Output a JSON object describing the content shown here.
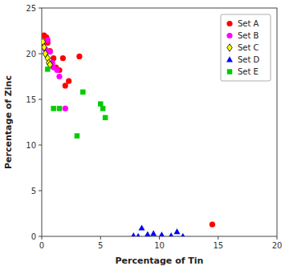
{
  "chart_data": {
    "type": "scatter",
    "xlabel": "Percentage of Tin",
    "ylabel": "Percentage of Zinc",
    "xlim": [
      0,
      20
    ],
    "ylim": [
      0,
      25
    ],
    "xticks": [
      0,
      5,
      10,
      15,
      20
    ],
    "yticks": [
      0,
      5,
      10,
      15,
      20,
      25
    ],
    "grid": false,
    "legend": "upper right",
    "series": [
      {
        "name": "Set A",
        "color": "#ff0000",
        "marker": "circle",
        "x": [
          0.2,
          0.4,
          0.5,
          0.7,
          1.0,
          1.2,
          1.5,
          1.8,
          2.0,
          2.3,
          3.2,
          14.5
        ],
        "values": [
          22.0,
          21.8,
          21.2,
          20.3,
          19.5,
          18.5,
          18.2,
          19.5,
          16.5,
          17.0,
          19.7,
          1.3
        ]
      },
      {
        "name": "Set B",
        "color": "#ff00ff",
        "marker": "circle",
        "x": [
          0.1,
          0.3,
          0.5,
          0.7,
          0.9,
          1.0,
          1.3,
          1.5,
          2.0
        ],
        "values": [
          21.2,
          20.5,
          21.5,
          20.2,
          19.0,
          18.5,
          18.2,
          17.5,
          14.0
        ]
      },
      {
        "name": "Set C",
        "color": "#ffff00",
        "marker": "diamond",
        "x": [
          0.1,
          0.2,
          0.3,
          0.5,
          0.6,
          0.7
        ],
        "values": [
          21.3,
          20.7,
          20.0,
          19.5,
          19.0,
          18.8
        ]
      },
      {
        "name": "Set D",
        "color": "#0000ff",
        "marker": "triangle",
        "x": [
          7.8,
          8.2,
          8.5,
          9.0,
          9.5,
          10.2,
          11.0,
          11.5,
          12.0
        ],
        "values": [
          0.05,
          0.0,
          0.9,
          0.2,
          0.3,
          0.15,
          0.05,
          0.5,
          0.0
        ]
      },
      {
        "name": "Set E",
        "color": "#00cc00",
        "marker": "square",
        "x": [
          0.5,
          1.0,
          1.5,
          3.0,
          3.5,
          5.0,
          5.2,
          5.4
        ],
        "values": [
          18.3,
          14.0,
          14.0,
          11.0,
          15.8,
          14.5,
          14.0,
          13.0
        ]
      }
    ]
  }
}
